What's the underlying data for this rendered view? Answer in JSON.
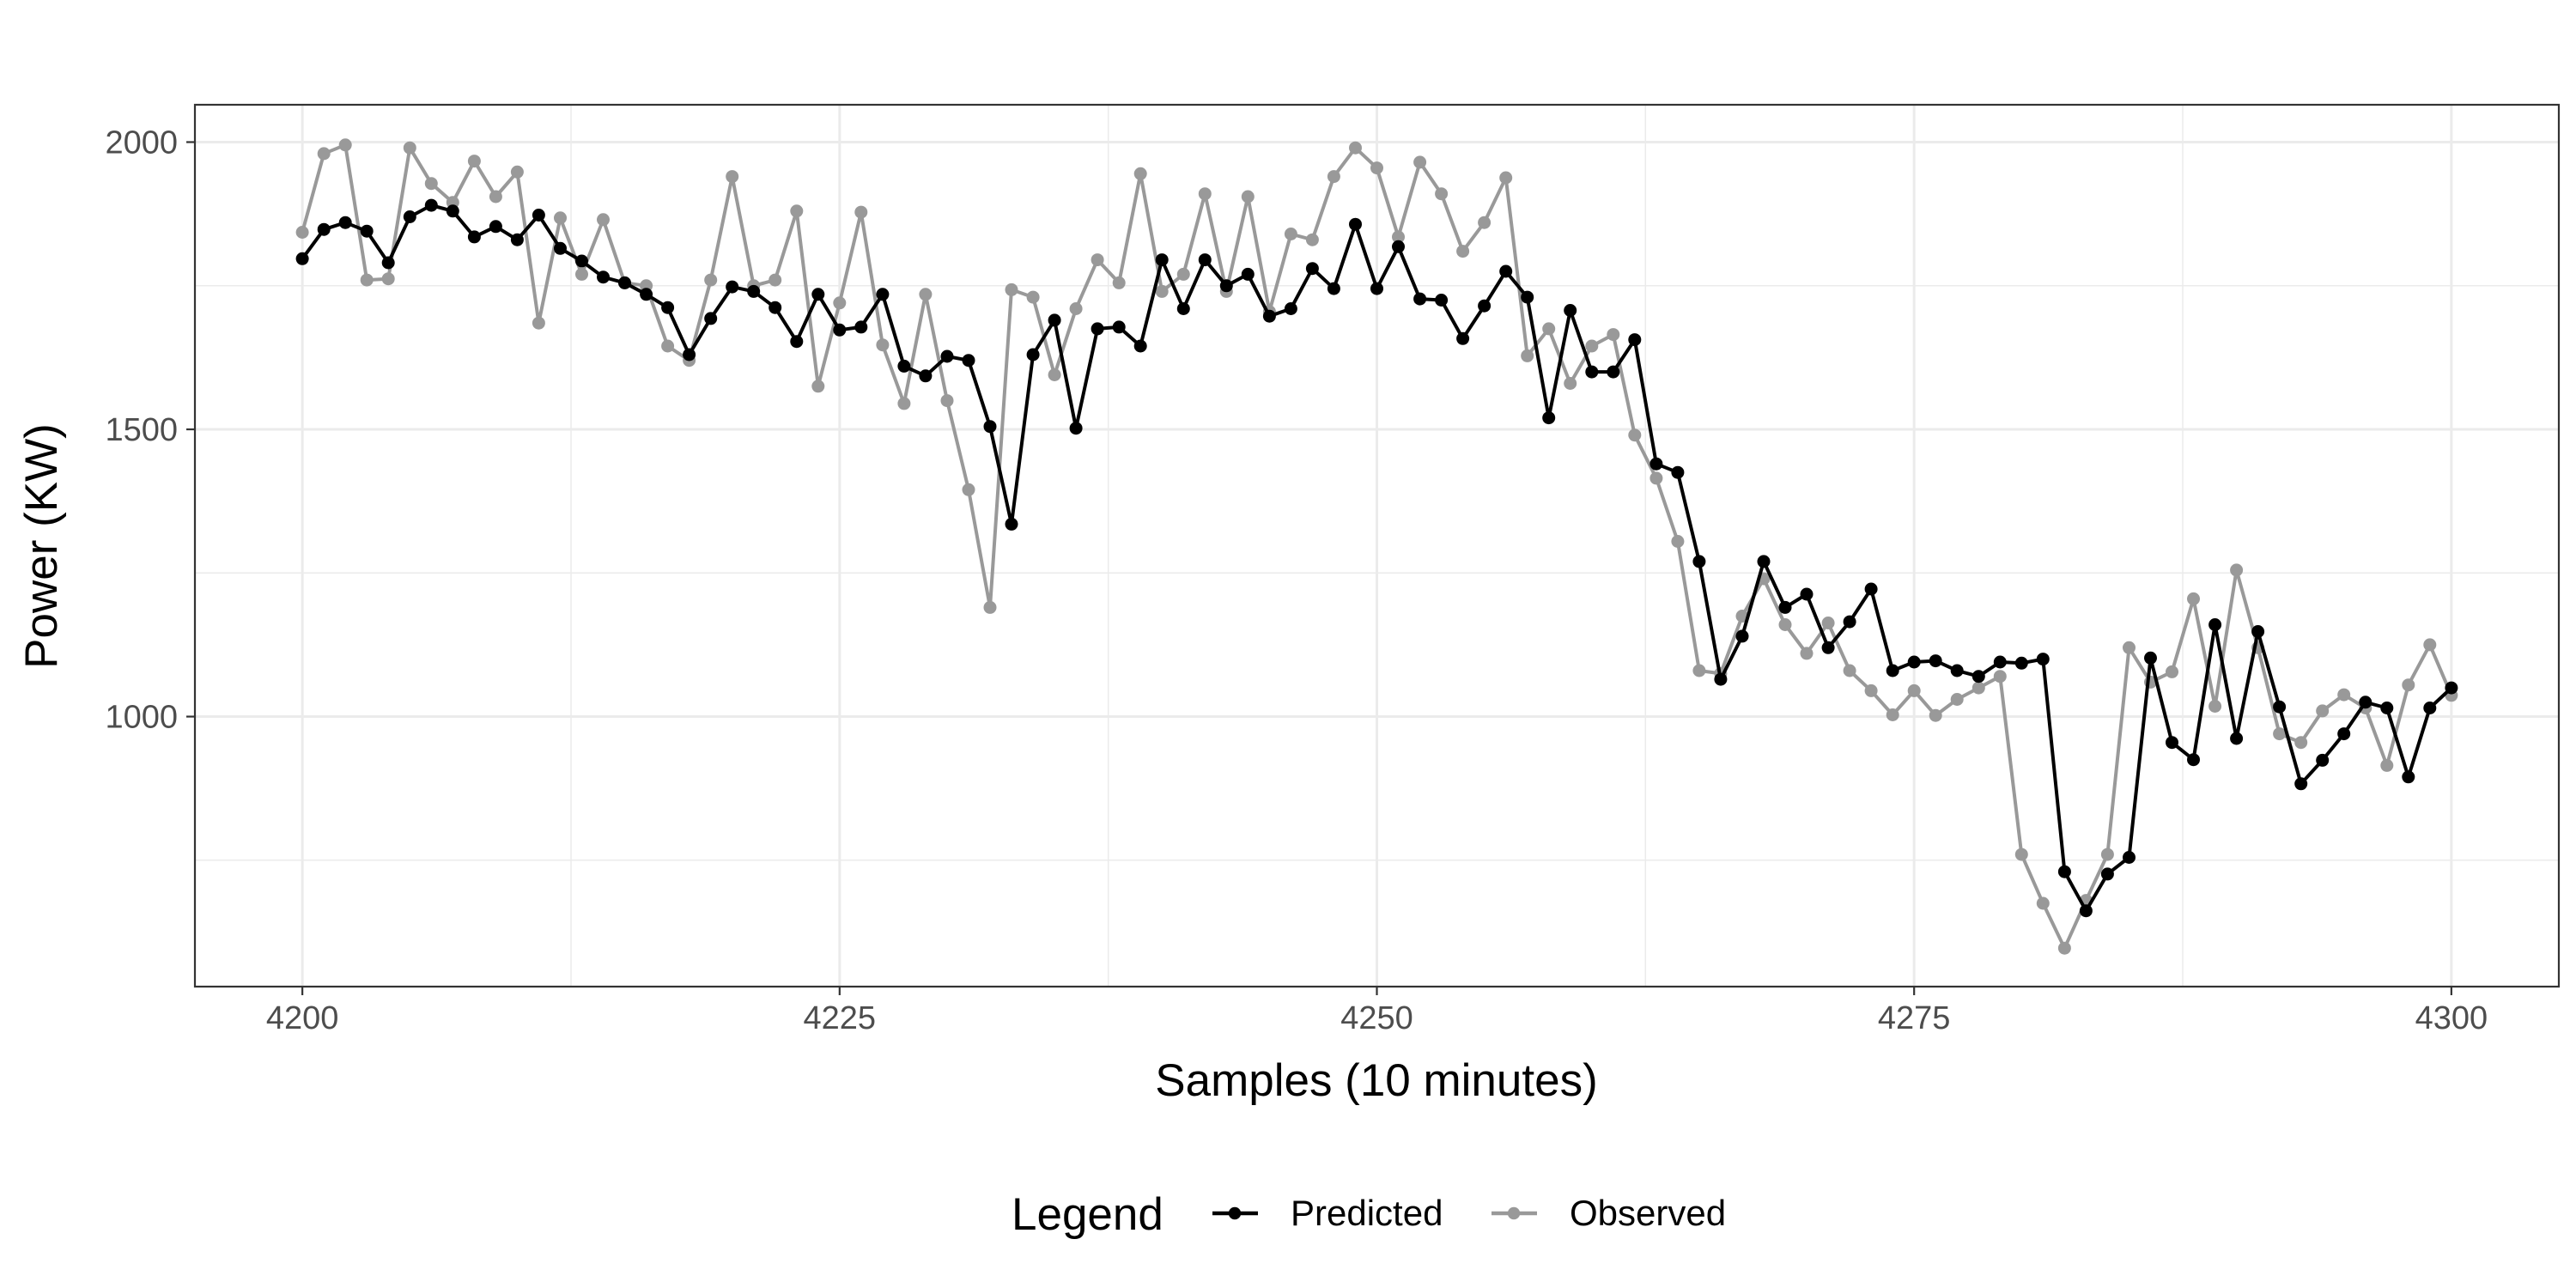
{
  "chart_data": {
    "type": "line",
    "title": "",
    "xlabel": "Samples (10 minutes)",
    "ylabel": "Power (KW)",
    "xlim": [
      4195,
      4305
    ],
    "ylim": [
      530,
      2065
    ],
    "x_ticks": [
      4200,
      4225,
      4250,
      4275,
      4300
    ],
    "y_ticks": [
      1000,
      1500,
      2000
    ],
    "grid": true,
    "legend_position": "bottom",
    "legend_title": "Legend",
    "x_start": 4200,
    "x_end": 4300,
    "series": [
      {
        "name": "Predicted",
        "color": "#000000",
        "values": [
          1797,
          1848,
          1860,
          1845,
          1790,
          1870,
          1890,
          1880,
          1835,
          1853,
          1830,
          1873,
          1815,
          1793,
          1765,
          1755,
          1735,
          1712,
          1630,
          1693,
          1748,
          1740,
          1712,
          1653,
          1735,
          1673,
          1678,
          1735,
          1610,
          1593,
          1627,
          1620,
          1505,
          1335,
          1630,
          1690,
          1502,
          1675,
          1678,
          1645,
          1795,
          1710,
          1795,
          1750,
          1770,
          1697,
          1710,
          1780,
          1745,
          1857,
          1745,
          1818,
          1727,
          1725,
          1658,
          1715,
          1775,
          1730,
          1520,
          1707,
          1600,
          1600,
          1656,
          1440,
          1425,
          1270,
          1065,
          1140,
          1270,
          1190,
          1213,
          1120,
          1165,
          1222,
          1080,
          1095,
          1097,
          1080,
          1070,
          1095,
          1093,
          1100,
          730,
          662,
          726,
          755,
          1102,
          955,
          925,
          1160,
          962,
          1148,
          1017,
          883,
          924,
          970,
          1025,
          1015,
          895,
          1015,
          1050
        ]
      },
      {
        "name": "Observed",
        "color": "#999999",
        "values": [
          1843,
          1980,
          1995,
          1760,
          1762,
          1990,
          1928,
          1895,
          1967,
          1905,
          1948,
          1685,
          1868,
          1770,
          1865,
          1755,
          1750,
          1645,
          1620,
          1760,
          1940,
          1750,
          1760,
          1880,
          1575,
          1720,
          1878,
          1647,
          1545,
          1735,
          1550,
          1395,
          1190,
          1743,
          1730,
          1595,
          1710,
          1795,
          1755,
          1945,
          1740,
          1770,
          1910,
          1740,
          1905,
          1705,
          1840,
          1830,
          1940,
          1990,
          1955,
          1835,
          1965,
          1910,
          1810,
          1860,
          1938,
          1628,
          1675,
          1580,
          1645,
          1665,
          1490,
          1415,
          1305,
          1080,
          1075,
          1175,
          1240,
          1160,
          1110,
          1163,
          1080,
          1045,
          1003,
          1045,
          1002,
          1030,
          1050,
          1070,
          760,
          675,
          597,
          680,
          760,
          1120,
          1060,
          1078,
          1205,
          1018,
          1255,
          1120,
          970,
          955,
          1010,
          1038,
          1015,
          915,
          1055,
          1125,
          1037
        ]
      }
    ]
  }
}
